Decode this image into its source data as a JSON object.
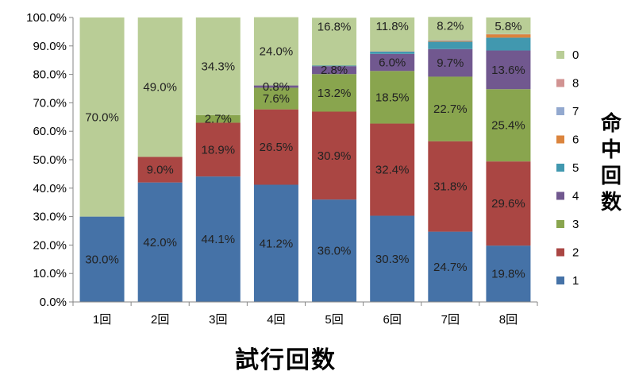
{
  "chart_data": {
    "type": "bar",
    "stacked": true,
    "percent": true,
    "title": "",
    "xlabel": "試行回数",
    "ylabel": "命中回数",
    "ylim": [
      0,
      100
    ],
    "y_ticks": [
      "0.0%",
      "10.0%",
      "20.0%",
      "30.0%",
      "40.0%",
      "50.0%",
      "60.0%",
      "70.0%",
      "80.0%",
      "90.0%",
      "100.0%"
    ],
    "categories": [
      "1回",
      "2回",
      "3回",
      "4回",
      "5回",
      "6回",
      "7回",
      "8回"
    ],
    "legend_position": "right",
    "grid": false,
    "series": [
      {
        "name": "1",
        "color": "#4572A7",
        "values": [
          30.0,
          42.0,
          44.1,
          41.2,
          36.0,
          30.3,
          24.7,
          19.8
        ],
        "labels": [
          "30.0%",
          "42.0%",
          "44.1%",
          "41.2%",
          "36.0%",
          "30.3%",
          "24.7%",
          "19.8%"
        ]
      },
      {
        "name": "2",
        "color": "#AA4643",
        "values": [
          0,
          9.0,
          18.9,
          26.5,
          30.9,
          32.4,
          31.8,
          29.6
        ],
        "labels": [
          "",
          "9.0%",
          "18.9%",
          "26.5%",
          "30.9%",
          "32.4%",
          "31.8%",
          "29.6%"
        ]
      },
      {
        "name": "3",
        "color": "#89A54E",
        "values": [
          0,
          0,
          2.7,
          7.6,
          13.2,
          18.5,
          22.7,
          25.4
        ],
        "labels": [
          "",
          "",
          "2.7%",
          "7.6%",
          "13.2%",
          "18.5%",
          "22.7%",
          "25.4%"
        ]
      },
      {
        "name": "4",
        "color": "#71588F",
        "values": [
          0,
          0,
          0,
          0.8,
          2.8,
          6.0,
          9.7,
          13.6
        ],
        "labels": [
          "",
          "",
          "",
          "0.8%",
          "2.8%",
          "6.0%",
          "9.7%",
          "13.6%"
        ]
      },
      {
        "name": "5",
        "color": "#4198AF",
        "values": [
          0,
          0,
          0,
          0,
          0.2,
          0.8,
          2.6,
          4.5
        ],
        "labels": [
          "",
          "",
          "",
          "",
          "",
          "",
          "",
          ""
        ]
      },
      {
        "name": "6",
        "color": "#DB843D",
        "values": [
          0,
          0,
          0,
          0,
          0,
          0.1,
          0.3,
          1.2
        ],
        "labels": [
          "",
          "",
          "",
          "",
          "",
          "",
          "",
          ""
        ]
      },
      {
        "name": "7",
        "color": "#93A9CF",
        "values": [
          0,
          0,
          0,
          0,
          0,
          0.1,
          0.2,
          0.1
        ],
        "labels": [
          "",
          "",
          "",
          "",
          "",
          "",
          "",
          ""
        ]
      },
      {
        "name": "8",
        "color": "#D19392",
        "values": [
          0,
          0,
          0,
          0,
          0,
          0,
          0,
          0
        ],
        "labels": [
          "",
          "",
          "",
          "",
          "",
          "",
          "",
          ""
        ]
      },
      {
        "name": "0",
        "color": "#B9CD96",
        "values": [
          70.0,
          49.0,
          34.3,
          24.0,
          16.8,
          11.8,
          8.2,
          5.8
        ],
        "labels": [
          "70.0%",
          "49.0%",
          "34.3%",
          "24.0%",
          "16.8%",
          "11.8%",
          "8.2%",
          "5.8%"
        ]
      }
    ],
    "legend_order": [
      "0",
      "8",
      "7",
      "6",
      "5",
      "4",
      "3",
      "2",
      "1"
    ]
  }
}
